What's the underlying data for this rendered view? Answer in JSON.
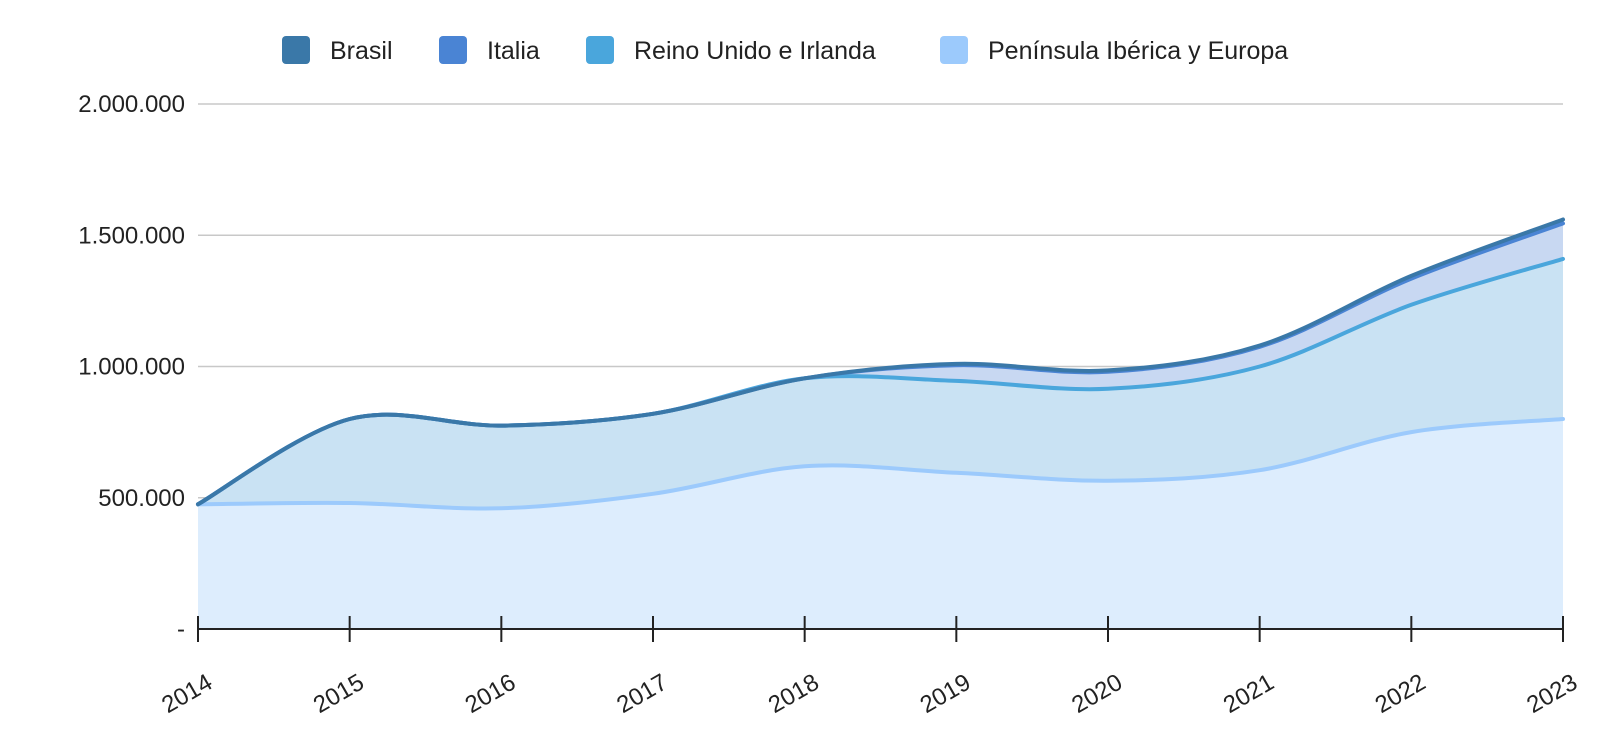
{
  "chart_data": {
    "type": "area",
    "stacked": true,
    "categories": [
      "2014",
      "2015",
      "2016",
      "2017",
      "2018",
      "2019",
      "2020",
      "2021",
      "2022",
      "2023"
    ],
    "y_ticks": [
      "-",
      "500.000",
      "1.000.000",
      "1.500.000",
      "2.000.000"
    ],
    "ylim": [
      0,
      2000000
    ],
    "grid": true,
    "legend_position": "top",
    "series": [
      {
        "name": "Península Ibérica y Europa",
        "values": [
          475000,
          480000,
          460000,
          515000,
          620000,
          595000,
          565000,
          605000,
          750000,
          800000
        ]
      },
      {
        "name": "Reino Unido e Irlanda",
        "values": [
          0,
          320000,
          315000,
          305000,
          335000,
          350000,
          350000,
          395000,
          485000,
          610000
        ]
      },
      {
        "name": "Italia",
        "values": [
          0,
          0,
          0,
          0,
          0,
          60000,
          65000,
          75000,
          100000,
          135000
        ]
      },
      {
        "name": "Brasil",
        "values": [
          0,
          0,
          0,
          0,
          0,
          5000,
          5000,
          5000,
          10000,
          15000
        ]
      }
    ],
    "legend_order": [
      "Brasil",
      "Italia",
      "Reino Unido e Irlanda",
      "Península Ibérica y Europa"
    ],
    "colors": {
      "Brasil": "#3a78a8",
      "Italia": "#4a84d4",
      "Reino Unido e Irlanda": "#4aa6dc",
      "Península Ibérica y Europa": "#9ccafc"
    },
    "fill_colors": {
      "Brasil": "#c6daf0",
      "Italia": "#c8d8f2",
      "Reino Unido e Irlanda": "#c9e2f3",
      "Península Ibérica y Europa": "#ddedfd"
    },
    "grid_color": "#c8c8c8",
    "axis_color": "#222222"
  }
}
